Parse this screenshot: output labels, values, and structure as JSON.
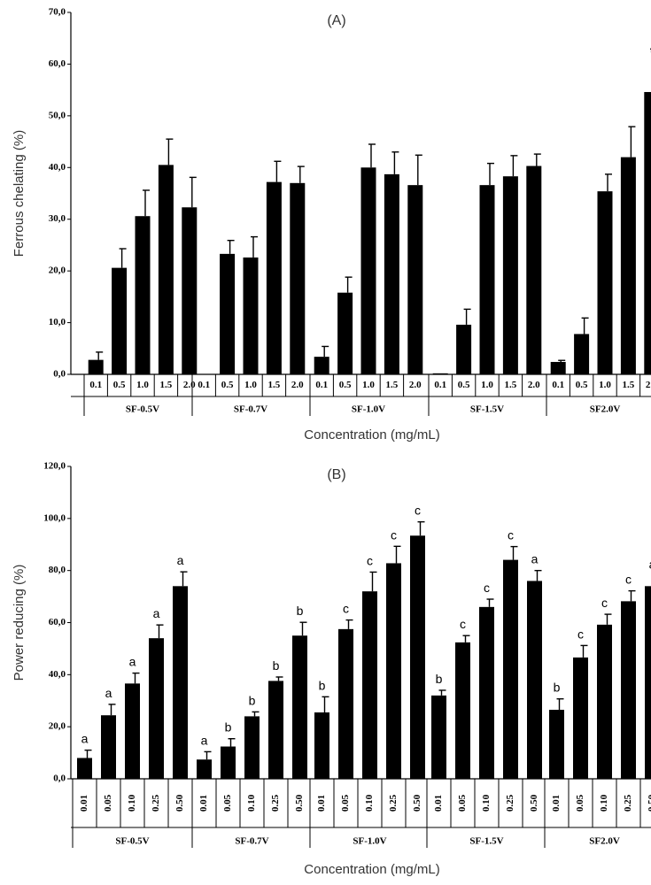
{
  "chart_data": [
    {
      "type": "bar",
      "title": "(A)",
      "ylabel": "Ferrous chelating (%)",
      "xlabel": "Concentration (mg/mL)",
      "ylim": [
        0,
        70
      ],
      "yticks": [
        "0,0",
        "10,0",
        "20,0",
        "30,0",
        "40,0",
        "50,0",
        "60,0",
        "70,0"
      ],
      "categories": [
        "0.1",
        "0.5",
        "1.0",
        "1.5",
        "2.0"
      ],
      "groups": [
        {
          "name": "SF-0.5V",
          "values": [
            2.8,
            20.6,
            30.6,
            40.5,
            32.3
          ],
          "errors": [
            1.5,
            3.7,
            5.0,
            5.0,
            5.8
          ],
          "labels": [
            "",
            "",
            "",
            "",
            ""
          ]
        },
        {
          "name": "SF-0.7V",
          "values": [
            0,
            23.3,
            22.6,
            37.2,
            37.0
          ],
          "errors": [
            0,
            2.6,
            4.0,
            4.0,
            3.2
          ],
          "labels": [
            "",
            "",
            "",
            "",
            ""
          ]
        },
        {
          "name": "SF-1.0V",
          "values": [
            3.4,
            15.8,
            40.0,
            38.7,
            36.6
          ],
          "errors": [
            2.0,
            3.0,
            4.5,
            4.3,
            5.8
          ],
          "labels": [
            "",
            "",
            "",
            "",
            ""
          ]
        },
        {
          "name": "SF-1.5V",
          "values": [
            0.2,
            9.6,
            36.6,
            38.3,
            40.3
          ],
          "errors": [
            0,
            3.0,
            4.2,
            4.0,
            2.3
          ],
          "labels": [
            "",
            "",
            "",
            "",
            ""
          ]
        },
        {
          "name": "SF2.0V",
          "values": [
            2.4,
            7.8,
            35.4,
            42.0,
            54.6
          ],
          "errors": [
            0.3,
            3.1,
            3.3,
            5.9,
            5.7
          ],
          "labels": [
            "",
            "",
            "",
            "",
            "*"
          ]
        }
      ]
    },
    {
      "type": "bar",
      "title": "(B)",
      "ylabel": "Power reducing (%)",
      "xlabel": "Concentration (mg/mL)",
      "ylim": [
        0,
        120
      ],
      "yticks": [
        "0,0",
        "20,0",
        "40,0",
        "60,0",
        "80,0",
        "100,0",
        "120,0"
      ],
      "categories": [
        "0.01",
        "0.05",
        "0.10",
        "0.25",
        "0.50"
      ],
      "groups": [
        {
          "name": "SF-0.5V",
          "values": [
            8.0,
            24.4,
            36.6,
            54.0,
            74.0
          ],
          "errors": [
            3.0,
            4.2,
            4.0,
            5.1,
            5.5
          ],
          "labels": [
            "a",
            "a",
            "a",
            "a",
            "a"
          ]
        },
        {
          "name": "SF-0.7V",
          "values": [
            7.4,
            12.4,
            24.0,
            37.6,
            55.0
          ],
          "errors": [
            3.0,
            3.0,
            1.7,
            1.5,
            5.1
          ],
          "labels": [
            "a",
            "b",
            "b",
            "b",
            "b"
          ]
        },
        {
          "name": "SF-1.0V",
          "values": [
            25.5,
            57.5,
            72.0,
            82.8,
            93.4
          ],
          "errors": [
            6.0,
            3.5,
            7.4,
            6.5,
            5.3
          ],
          "labels": [
            "b",
            "c",
            "c",
            "c",
            "c"
          ]
        },
        {
          "name": "SF-1.5V",
          "values": [
            32.0,
            52.4,
            66.0,
            84.1,
            76.0
          ],
          "errors": [
            2.0,
            2.6,
            3.0,
            5.1,
            4.0
          ],
          "labels": [
            "b",
            "c",
            "c",
            "c",
            "a"
          ]
        },
        {
          "name": "SF2.0V",
          "values": [
            26.5,
            46.6,
            59.2,
            68.2,
            74.0
          ],
          "errors": [
            4.2,
            4.6,
            4.0,
            4.0,
            4.0
          ],
          "labels": [
            "b",
            "c",
            "c",
            "c",
            "a"
          ]
        }
      ]
    }
  ]
}
